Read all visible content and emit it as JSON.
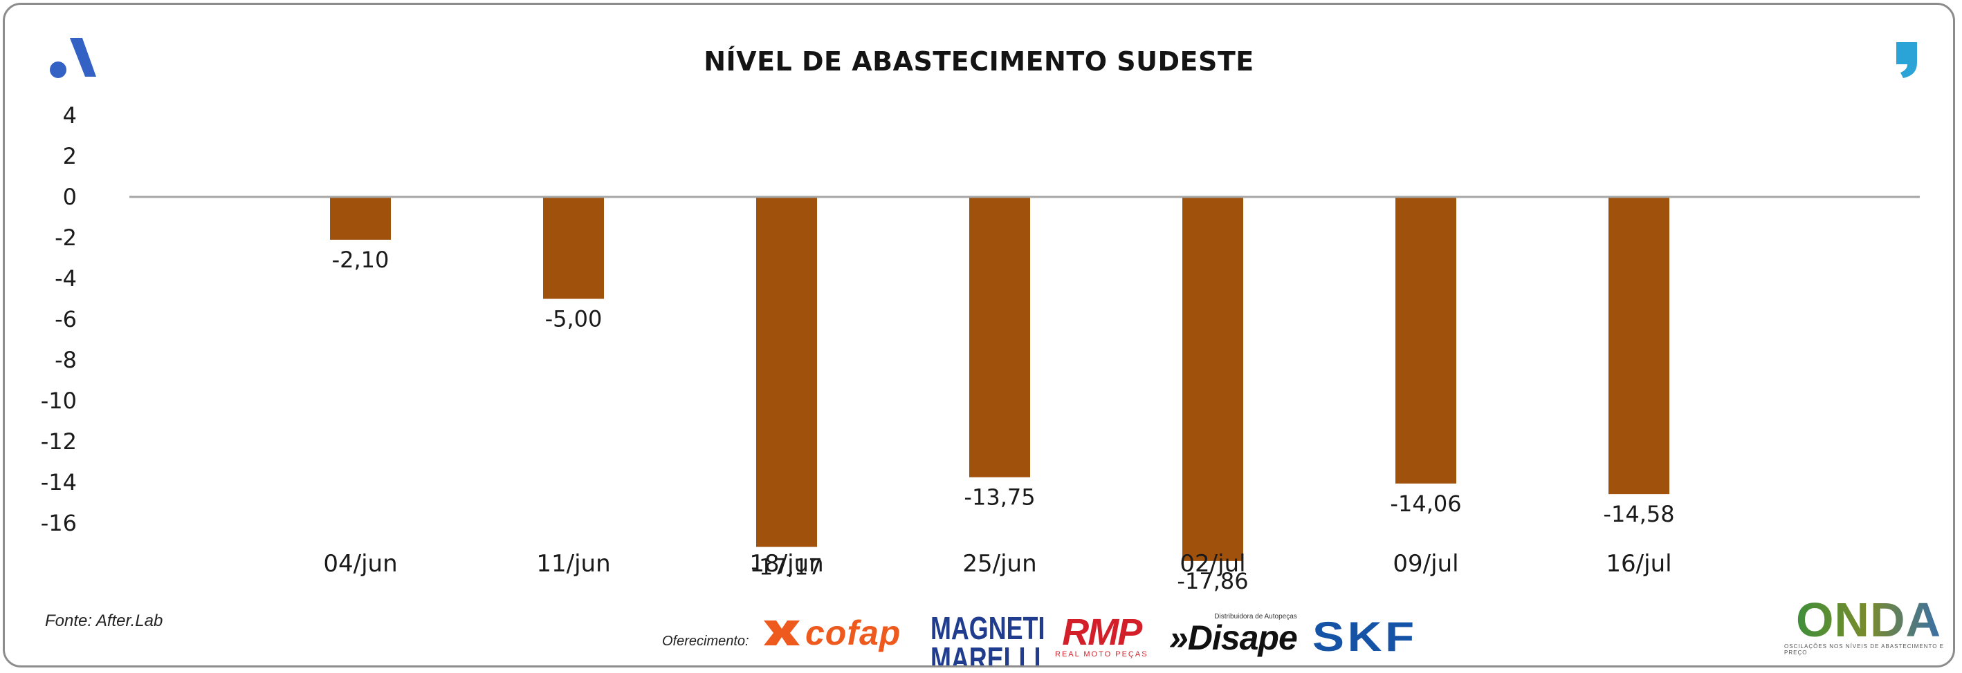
{
  "chart_data": {
    "type": "bar",
    "title": "NÍVEL DE ABASTECIMENTO SUDESTE",
    "categories": [
      "04/jun",
      "11/jun",
      "18/jun",
      "25/jun",
      "02/jul",
      "09/jul",
      "16/jul"
    ],
    "values": [
      -2.1,
      -5.0,
      -17.17,
      -13.75,
      -17.86,
      -14.06,
      -14.58
    ],
    "value_labels": [
      "-2,10",
      "-5,00",
      "-17,17",
      "-13,75",
      "-17,86",
      "-14,06",
      "-14,58"
    ],
    "yticks": [
      4,
      2,
      0,
      -2,
      -4,
      -6,
      -8,
      -10,
      -12,
      -14,
      -16
    ],
    "ytick_labels": [
      "4",
      "2",
      "0",
      "-2",
      "-4",
      "-6",
      "-8",
      "-10",
      "-12",
      "-14",
      "-16"
    ],
    "ylim": [
      -18,
      4
    ],
    "xlabel": "",
    "ylabel": "",
    "grid": false,
    "legend": "none",
    "bar_color": "#a0520c",
    "zero_line_color": "#a6a6a6"
  },
  "footer": {
    "source": "Fonte: After.Lab",
    "sponsor_label": "Oferecimento:"
  },
  "logos": {
    "top_left": "after-lab-a-logo",
    "top_right": "quote-logo",
    "sponsors": [
      {
        "name": "cofap",
        "text": "cofap",
        "color": "#ee5a1e"
      },
      {
        "name": "magneti-marelli",
        "line1": "MAGNETI",
        "line2": "MARELLI",
        "color": "#1f3c8f"
      },
      {
        "name": "rmp",
        "text": "RMP",
        "subtitle": "REAL MOTO PEÇAS",
        "color": "#d31f2a"
      },
      {
        "name": "disape",
        "text": "»Disape",
        "subtitle": "Distribuidora de Autopeças",
        "color": "#111111"
      },
      {
        "name": "skf",
        "text": "SKF",
        "color": "#1553a6"
      }
    ],
    "onda": {
      "text": "ONDA",
      "subtitle": "OSCILAÇÕES NOS NÍVEIS DE ABASTECIMENTO E PREÇO"
    }
  }
}
